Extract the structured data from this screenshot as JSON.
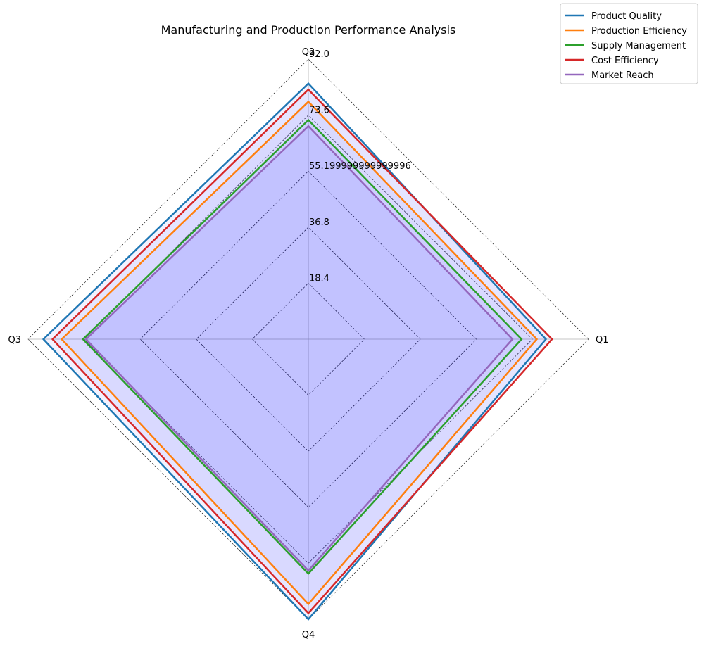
{
  "chart_data": {
    "type": "radar",
    "title": "Manufacturing and Production Performance Analysis",
    "categories": [
      "Q1",
      "Q2",
      "Q3",
      "Q4"
    ],
    "rmax": 92.0,
    "radial_ticks": [
      "18.4",
      "36.8",
      "55.199999999999996",
      "73.6",
      "92.0"
    ],
    "radial_tick_values": [
      18.4,
      36.8,
      55.2,
      73.6,
      92.0
    ],
    "grid": true,
    "legend_position": "top-right",
    "fill_color": "#0000ff",
    "series": [
      {
        "name": "Product Quality",
        "color": "#1f77b4",
        "values": [
          78,
          84,
          87,
          92
        ]
      },
      {
        "name": "Production Efficiency",
        "color": "#ff7f0e",
        "values": [
          75,
          78,
          81,
          87
        ]
      },
      {
        "name": "Supply Management",
        "color": "#2ca02c",
        "values": [
          70,
          72,
          74,
          77
        ]
      },
      {
        "name": "Cost Efficiency",
        "color": "#d62728",
        "values": [
          80,
          82,
          84,
          90
        ]
      },
      {
        "name": "Market Reach",
        "color": "#9467bd",
        "values": [
          67,
          70,
          73,
          76
        ]
      }
    ]
  }
}
